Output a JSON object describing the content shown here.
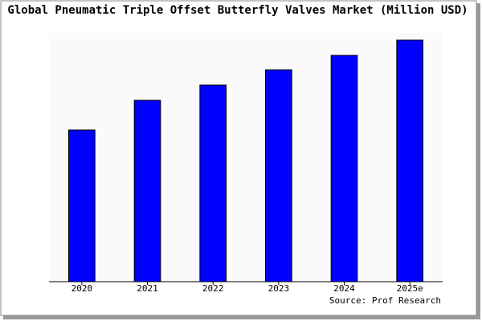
{
  "chart_data": {
    "type": "bar",
    "title": "Global Pneumatic Triple Offset Butterfly Valves Market (Million USD)",
    "categories": [
      "2020",
      "2021",
      "2022",
      "2023",
      "2024",
      "2025e"
    ],
    "values": [
      189,
      226,
      245,
      264,
      282,
      301
    ],
    "color": "#0000ff",
    "ylim": [
      0,
      310
    ],
    "source": "Source: Prof Research"
  }
}
